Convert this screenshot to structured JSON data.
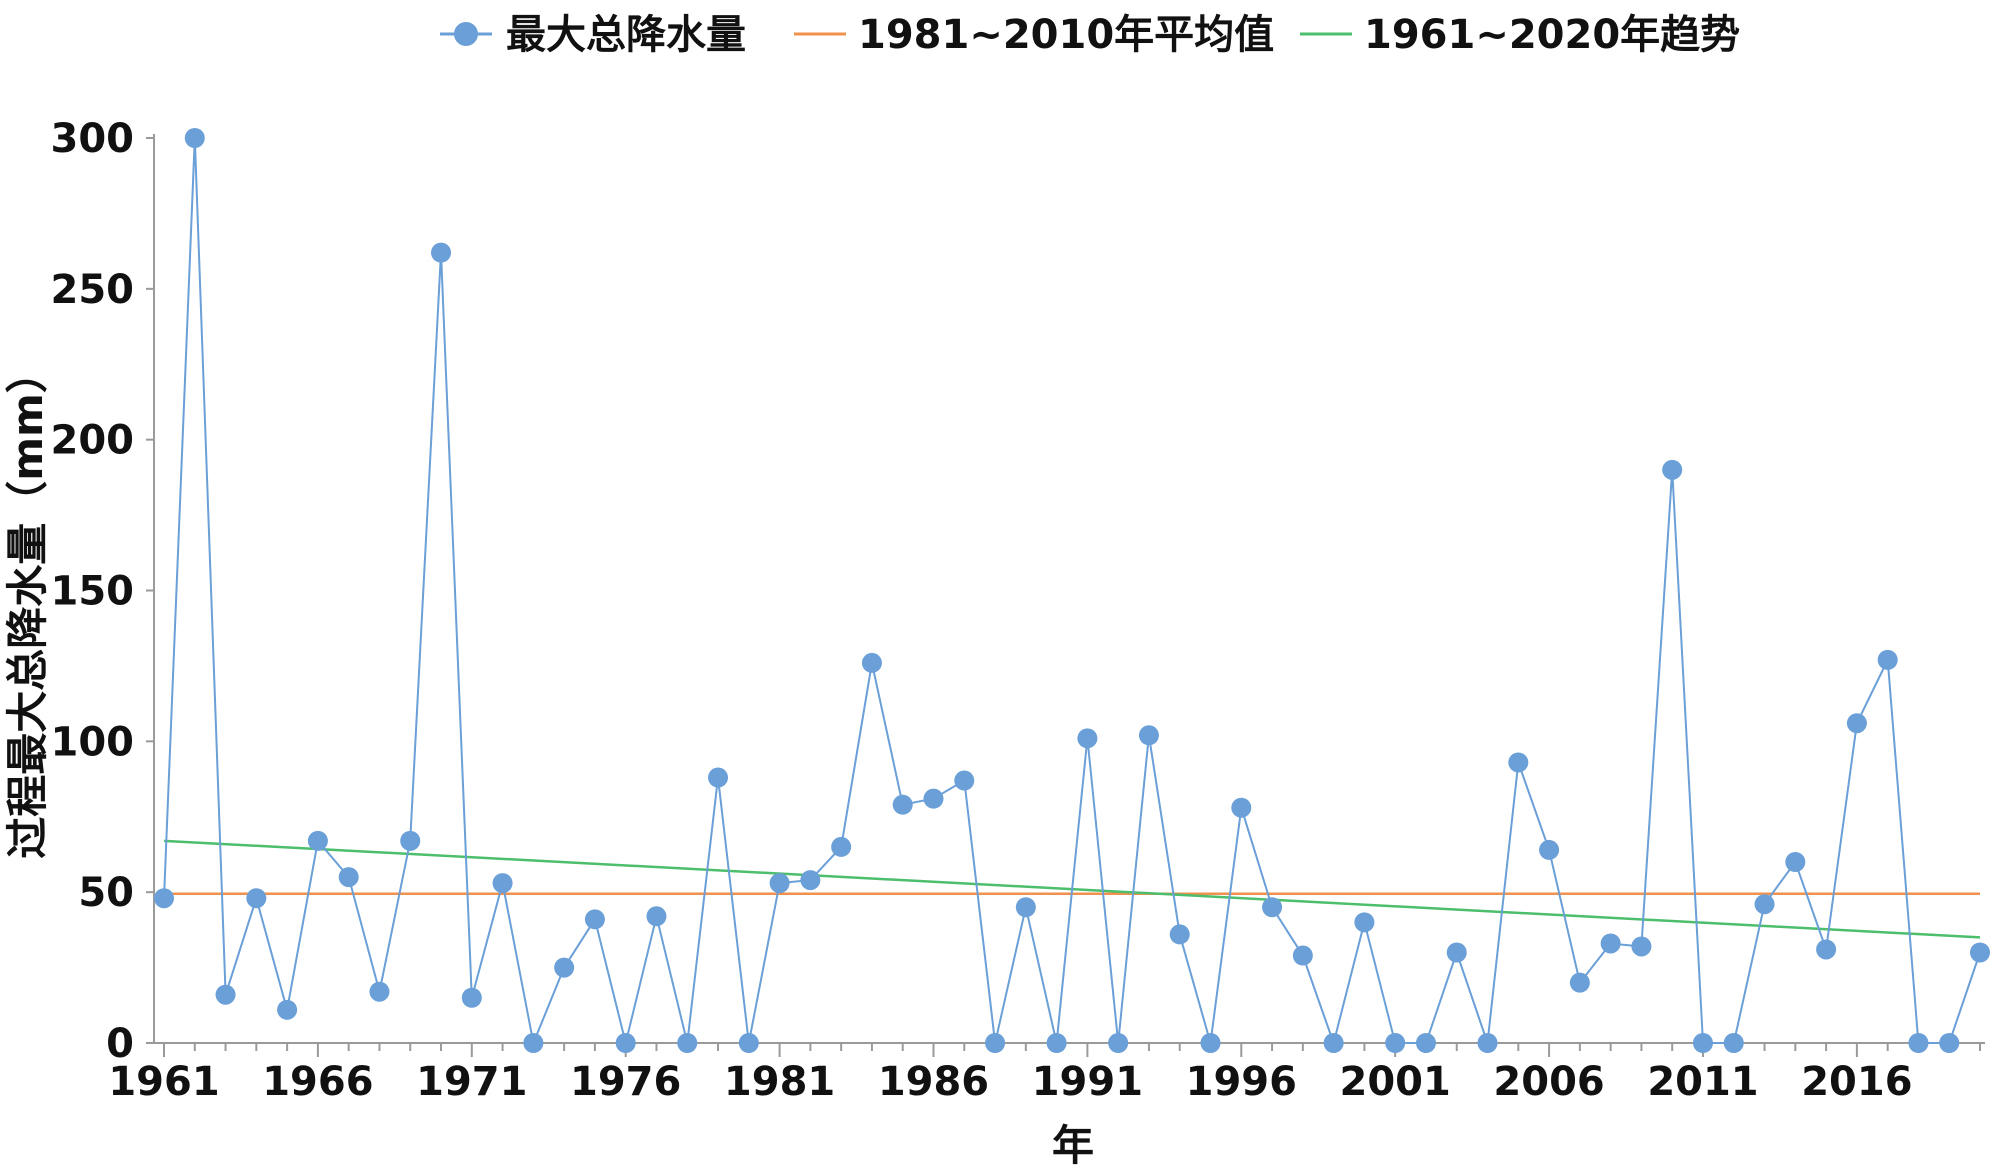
{
  "chart_data": {
    "type": "line",
    "title": "",
    "xlabel": "年",
    "ylabel": "过程最大总降水量（mm）",
    "xlim": [
      1961,
      2020
    ],
    "ylim": [
      0,
      300
    ],
    "x_ticks": [
      "1961",
      "1966",
      "1971",
      "1976",
      "1981",
      "1986",
      "1991",
      "1996",
      "2001",
      "2006",
      "2011",
      "2016"
    ],
    "y_ticks": [
      "0",
      "50",
      "100",
      "150",
      "200",
      "250",
      "300"
    ],
    "grid": false,
    "legend_position": "top",
    "series": [
      {
        "name": "最大总降水量",
        "kind": "line-marker",
        "color": "#6A9FD8",
        "x": [
          1961,
          1962,
          1963,
          1964,
          1965,
          1966,
          1967,
          1968,
          1969,
          1970,
          1971,
          1972,
          1973,
          1974,
          1975,
          1976,
          1977,
          1978,
          1979,
          1980,
          1981,
          1982,
          1983,
          1984,
          1985,
          1986,
          1987,
          1988,
          1989,
          1990,
          1991,
          1992,
          1993,
          1994,
          1995,
          1996,
          1997,
          1998,
          1999,
          2000,
          2001,
          2002,
          2003,
          2004,
          2005,
          2006,
          2007,
          2008,
          2009,
          2010,
          2011,
          2012,
          2013,
          2014,
          2015,
          2016,
          2017,
          2018,
          2019,
          2020
        ],
        "values": [
          48,
          300,
          16,
          48,
          11,
          67,
          55,
          17,
          67,
          262,
          15,
          53,
          0,
          25,
          41,
          0,
          42,
          0,
          88,
          0,
          53,
          54,
          65,
          126,
          79,
          81,
          87,
          0,
          45,
          0,
          101,
          0,
          102,
          36,
          0,
          78,
          45,
          29,
          0,
          40,
          0,
          0,
          30,
          0,
          93,
          64,
          20,
          33,
          32,
          190,
          0,
          0,
          46,
          60,
          31,
          106,
          127,
          0,
          0,
          30
        ]
      },
      {
        "name": "1981~2010年平均值",
        "kind": "line",
        "color": "#F0914E",
        "x": [
          1961,
          2020
        ],
        "values": [
          49.5,
          49.5
        ]
      },
      {
        "name": "1961~2020年趋势",
        "kind": "line",
        "color": "#4CBE6C",
        "x": [
          1961,
          2020
        ],
        "values": [
          67,
          35
        ]
      }
    ]
  }
}
